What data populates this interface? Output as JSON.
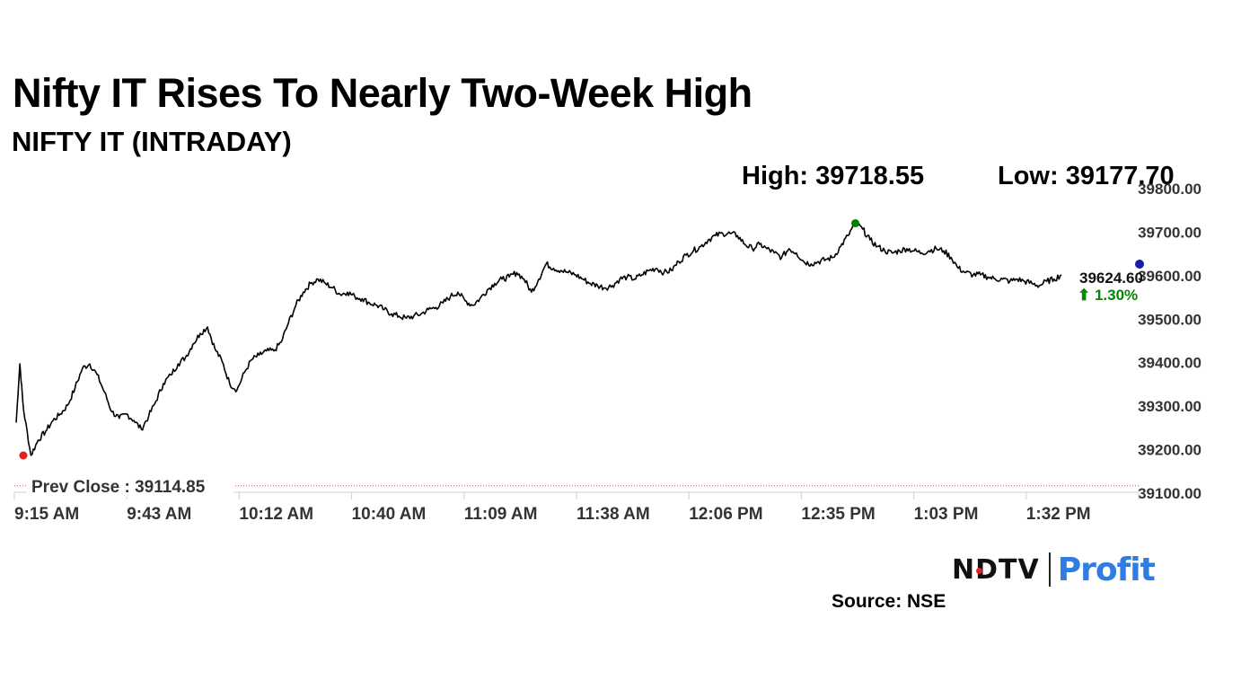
{
  "title": "Nifty IT Rises To Nearly Two-Week High",
  "subtitle": "NIFTY IT (INTRADAY)",
  "stats": {
    "high": "High: 39718.55",
    "low": "Low: 39177.70"
  },
  "source": "Source: NSE",
  "logo": {
    "ndtv": "NDTV",
    "profit": "Profit"
  },
  "chart_data": {
    "type": "line",
    "x_ticks": [
      "9:15 AM",
      "9:43 AM",
      "10:12 AM",
      "10:40 AM",
      "11:09 AM",
      "11:38 AM",
      "12:06 PM",
      "12:35 PM",
      "1:03 PM",
      "1:32 PM"
    ],
    "y_ticks": [
      "39800.00",
      "39700.00",
      "39600.00",
      "39500.00",
      "39400.00",
      "39300.00",
      "39200.00",
      "39100.00"
    ],
    "ylim": [
      39100,
      39800
    ],
    "prev_close": 39114.85,
    "prev_close_label": "Prev Close : 39114.85",
    "last_value_label": "39624.60",
    "change_label": "⬆ 1.30%",
    "high": 39718.55,
    "low": 39177.7,
    "line_color": "#000000",
    "high_marker_color": "#008000",
    "low_marker_color": "#e41f1f",
    "last_marker_color": "#1a1aa8",
    "change_color": "#008a00",
    "prev_close_color": "#d9534f",
    "series": [
      {
        "values": [
          [
            0,
            39260
          ],
          [
            0.5,
            39395
          ],
          [
            1,
            39290
          ],
          [
            2,
            39185
          ],
          [
            3,
            39220
          ],
          [
            4,
            39240
          ],
          [
            5,
            39265
          ],
          [
            6,
            39280
          ],
          [
            7,
            39300
          ],
          [
            8,
            39340
          ],
          [
            9,
            39385
          ],
          [
            10,
            39395
          ],
          [
            11,
            39370
          ],
          [
            12,
            39330
          ],
          [
            13,
            39285
          ],
          [
            14,
            39270
          ],
          [
            15,
            39280
          ],
          [
            16,
            39265
          ],
          [
            17,
            39245
          ],
          [
            18,
            39275
          ],
          [
            19,
            39310
          ],
          [
            20,
            39350
          ],
          [
            21,
            39370
          ],
          [
            22,
            39395
          ],
          [
            23,
            39410
          ],
          [
            24,
            39440
          ],
          [
            25,
            39465
          ],
          [
            26,
            39480
          ],
          [
            27,
            39430
          ],
          [
            28,
            39400
          ],
          [
            29,
            39350
          ],
          [
            30,
            39335
          ],
          [
            31,
            39375
          ],
          [
            32,
            39405
          ],
          [
            33,
            39415
          ],
          [
            34,
            39425
          ],
          [
            35,
            39425
          ],
          [
            36,
            39445
          ],
          [
            37,
            39490
          ],
          [
            38,
            39530
          ],
          [
            39,
            39560
          ],
          [
            40,
            39580
          ],
          [
            41,
            39590
          ],
          [
            42,
            39580
          ],
          [
            43,
            39570
          ],
          [
            44,
            39555
          ],
          [
            45,
            39560
          ],
          [
            46,
            39550
          ],
          [
            47,
            39545
          ],
          [
            48,
            39535
          ],
          [
            49,
            39530
          ],
          [
            50,
            39520
          ],
          [
            51,
            39510
          ],
          [
            52,
            39505
          ],
          [
            53,
            39500
          ],
          [
            54,
            39505
          ],
          [
            55,
            39510
          ],
          [
            56,
            39520
          ],
          [
            57,
            39525
          ],
          [
            58,
            39535
          ],
          [
            59,
            39550
          ],
          [
            60,
            39560
          ],
          [
            61,
            39540
          ],
          [
            62,
            39530
          ],
          [
            63,
            39545
          ],
          [
            64,
            39565
          ],
          [
            65,
            39580
          ],
          [
            66,
            39590
          ],
          [
            67,
            39595
          ],
          [
            68,
            39605
          ],
          [
            69,
            39590
          ],
          [
            70,
            39560
          ],
          [
            71,
            39590
          ],
          [
            72,
            39625
          ],
          [
            73,
            39615
          ],
          [
            74,
            39610
          ],
          [
            75,
            39605
          ],
          [
            76,
            39600
          ],
          [
            77,
            39590
          ],
          [
            78,
            39580
          ],
          [
            79,
            39575
          ],
          [
            80,
            39570
          ],
          [
            81,
            39575
          ],
          [
            82,
            39590
          ],
          [
            83,
            39595
          ],
          [
            84,
            39590
          ],
          [
            85,
            39600
          ],
          [
            86,
            39610
          ],
          [
            87,
            39615
          ],
          [
            88,
            39605
          ],
          [
            89,
            39610
          ],
          [
            90,
            39630
          ],
          [
            91,
            39645
          ],
          [
            92,
            39655
          ],
          [
            93,
            39665
          ],
          [
            94,
            39680
          ],
          [
            95,
            39690
          ],
          [
            96,
            39695
          ],
          [
            97,
            39695
          ],
          [
            98,
            39690
          ],
          [
            99,
            39670
          ],
          [
            100,
            39660
          ],
          [
            101,
            39670
          ],
          [
            102,
            39660
          ],
          [
            103,
            39650
          ],
          [
            104,
            39640
          ],
          [
            105,
            39660
          ],
          [
            106,
            39650
          ],
          [
            107,
            39630
          ],
          [
            108,
            39625
          ],
          [
            109,
            39630
          ],
          [
            110,
            39635
          ],
          [
            111,
            39640
          ],
          [
            112,
            39665
          ],
          [
            113,
            39690
          ],
          [
            114,
            39718.55
          ],
          [
            115,
            39705
          ],
          [
            116,
            39680
          ],
          [
            117,
            39665
          ],
          [
            118,
            39655
          ],
          [
            119,
            39650
          ],
          [
            120,
            39655
          ],
          [
            121,
            39660
          ],
          [
            122,
            39655
          ],
          [
            123,
            39650
          ],
          [
            124,
            39655
          ],
          [
            125,
            39660
          ],
          [
            126,
            39655
          ],
          [
            127,
            39640
          ],
          [
            128,
            39615
          ],
          [
            129,
            39605
          ],
          [
            130,
            39600
          ],
          [
            131,
            39600
          ],
          [
            132,
            39595
          ],
          [
            133,
            39590
          ],
          [
            134,
            39590
          ],
          [
            135,
            39585
          ],
          [
            136,
            39590
          ],
          [
            137,
            39585
          ],
          [
            138,
            39580
          ],
          [
            139,
            39575
          ],
          [
            140,
            39585
          ],
          [
            141,
            39590
          ],
          [
            142,
            39600
          ]
        ]
      }
    ]
  }
}
